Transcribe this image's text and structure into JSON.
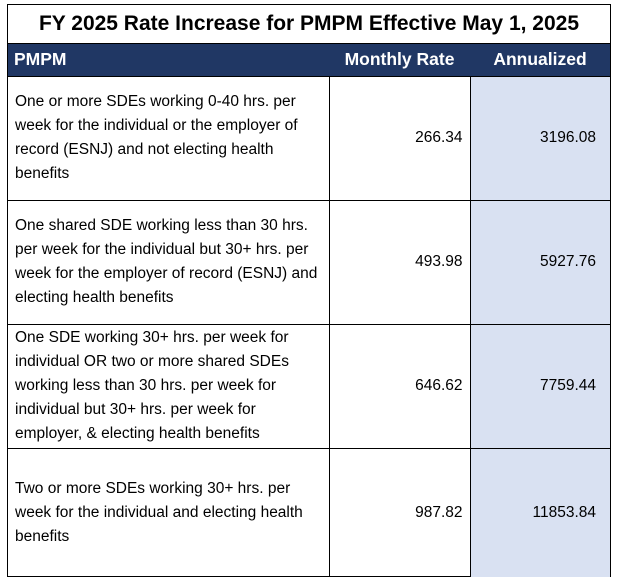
{
  "title": "FY 2025 Rate Increase for PMPM Effective May 1, 2025",
  "columns": {
    "pmpm": "PMPM",
    "monthly_rate": "Monthly Rate",
    "annualized": "Annualized"
  },
  "rows": [
    {
      "description": "One or more SDEs working 0-40 hrs. per week for the individual or the employer of record (ESNJ) and not electing health benefits",
      "monthly_rate": "266.34",
      "annualized": "3196.08"
    },
    {
      "description": "One shared SDE working less than 30 hrs. per week for the individual but 30+ hrs. per week for the employer of record (ESNJ) and electing health benefits",
      "monthly_rate": "493.98",
      "annualized": "5927.76"
    },
    {
      "description": "One SDE working 30+ hrs. per week for individual OR two or more shared SDEs working less than 30 hrs. per week for individual but 30+ hrs. per week for employer, & electing health benefits",
      "monthly_rate": "646.62",
      "annualized": "7759.44"
    },
    {
      "description": "Two or more SDEs working 30+ hrs. per week for the individual and electing health benefits",
      "monthly_rate": "987.82",
      "annualized": "11853.84"
    }
  ],
  "colors": {
    "header_bg": "#203764",
    "header_text": "#ffffff",
    "annualized_bg": "#d9e1f2"
  }
}
